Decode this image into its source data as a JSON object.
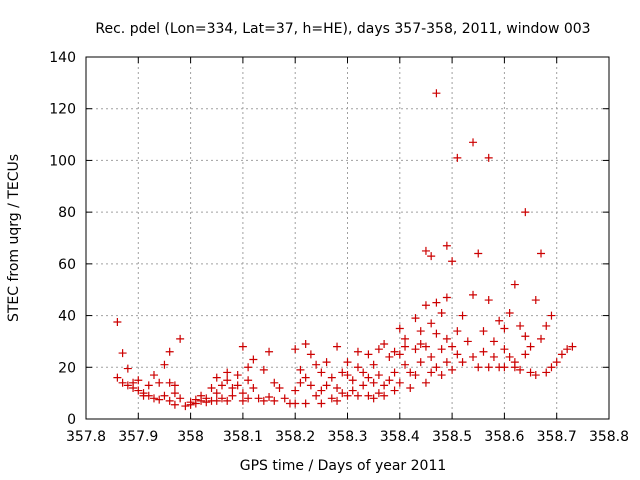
{
  "chart_data": {
    "type": "scatter",
    "title": "Rec. pdel (Lon=334, Lat=37, h=HE), days 357-358, 2011, window 003",
    "xlabel": "GPS time / Days of year 2011",
    "ylabel": "STEC from uqrg / TECUs",
    "xlim": [
      357.8,
      358.8
    ],
    "ylim": [
      0,
      140
    ],
    "xticks": [
      357.8,
      357.9,
      358,
      358.1,
      358.2,
      358.3,
      358.4,
      358.5,
      358.6,
      358.7,
      358.8
    ],
    "yticks": [
      0,
      20,
      40,
      60,
      80,
      100,
      120,
      140
    ],
    "grid": true,
    "marker": "+",
    "marker_color": "#cc0000",
    "points": [
      [
        357.86,
        37.5
      ],
      [
        357.86,
        16
      ],
      [
        357.87,
        25.5
      ],
      [
        357.87,
        14
      ],
      [
        357.88,
        19.5
      ],
      [
        357.88,
        13
      ],
      [
        357.89,
        14
      ],
      [
        357.89,
        12
      ],
      [
        357.9,
        15
      ],
      [
        357.9,
        11
      ],
      [
        357.91,
        10
      ],
      [
        357.91,
        9
      ],
      [
        357.92,
        13
      ],
      [
        357.92,
        9
      ],
      [
        357.93,
        17
      ],
      [
        357.93,
        8
      ],
      [
        357.94,
        14
      ],
      [
        357.94,
        7.5
      ],
      [
        357.95,
        21
      ],
      [
        357.95,
        9
      ],
      [
        357.96,
        26
      ],
      [
        357.96,
        14
      ],
      [
        357.96,
        7
      ],
      [
        357.97,
        13
      ],
      [
        357.97,
        10
      ],
      [
        357.97,
        5.5
      ],
      [
        357.98,
        31
      ],
      [
        357.98,
        8
      ],
      [
        357.99,
        5
      ],
      [
        358.0,
        6.5
      ],
      [
        358.0,
        5.5
      ],
      [
        358.01,
        6
      ],
      [
        358.01,
        7.5
      ],
      [
        358.02,
        7
      ],
      [
        358.02,
        9
      ],
      [
        358.03,
        6.5
      ],
      [
        358.03,
        8
      ],
      [
        358.04,
        12
      ],
      [
        358.04,
        7
      ],
      [
        358.05,
        16
      ],
      [
        358.05,
        10
      ],
      [
        358.05,
        7
      ],
      [
        358.06,
        13
      ],
      [
        358.06,
        8
      ],
      [
        358.07,
        18
      ],
      [
        358.07,
        15
      ],
      [
        358.07,
        7
      ],
      [
        358.08,
        12
      ],
      [
        358.08,
        9
      ],
      [
        358.09,
        17
      ],
      [
        358.09,
        13
      ],
      [
        358.1,
        28
      ],
      [
        358.1,
        10
      ],
      [
        358.1,
        7
      ],
      [
        358.11,
        20
      ],
      [
        358.11,
        15
      ],
      [
        358.11,
        8
      ],
      [
        358.12,
        23
      ],
      [
        358.12,
        12
      ],
      [
        358.13,
        8
      ],
      [
        358.14,
        19
      ],
      [
        358.14,
        7
      ],
      [
        358.15,
        26
      ],
      [
        358.15,
        8.5
      ],
      [
        358.16,
        14
      ],
      [
        358.16,
        7
      ],
      [
        358.17,
        12
      ],
      [
        358.18,
        8
      ],
      [
        358.19,
        6
      ],
      [
        358.2,
        27
      ],
      [
        358.2,
        11
      ],
      [
        358.2,
        6
      ],
      [
        358.21,
        19
      ],
      [
        358.21,
        14
      ],
      [
        358.22,
        29
      ],
      [
        358.22,
        16
      ],
      [
        358.22,
        6
      ],
      [
        358.23,
        25
      ],
      [
        358.23,
        13
      ],
      [
        358.24,
        21
      ],
      [
        358.24,
        9
      ],
      [
        358.25,
        18
      ],
      [
        358.25,
        11
      ],
      [
        358.25,
        6
      ],
      [
        358.26,
        22
      ],
      [
        358.26,
        13
      ],
      [
        358.27,
        16
      ],
      [
        358.27,
        8
      ],
      [
        358.28,
        28
      ],
      [
        358.28,
        12
      ],
      [
        358.28,
        7
      ],
      [
        358.29,
        18
      ],
      [
        358.29,
        10
      ],
      [
        358.3,
        22
      ],
      [
        358.3,
        17
      ],
      [
        358.3,
        9
      ],
      [
        358.31,
        15
      ],
      [
        358.31,
        11
      ],
      [
        358.32,
        26
      ],
      [
        358.32,
        20
      ],
      [
        358.32,
        9
      ],
      [
        358.33,
        18
      ],
      [
        358.33,
        13
      ],
      [
        358.34,
        25
      ],
      [
        358.34,
        16
      ],
      [
        358.34,
        9
      ],
      [
        358.35,
        21
      ],
      [
        358.35,
        14
      ],
      [
        358.35,
        8
      ],
      [
        358.36,
        27
      ],
      [
        358.36,
        17
      ],
      [
        358.36,
        10
      ],
      [
        358.37,
        29
      ],
      [
        358.37,
        13
      ],
      [
        358.37,
        9
      ],
      [
        358.38,
        24
      ],
      [
        358.38,
        15
      ],
      [
        358.39,
        26
      ],
      [
        358.39,
        18
      ],
      [
        358.39,
        11
      ],
      [
        358.4,
        35
      ],
      [
        358.4,
        25
      ],
      [
        358.4,
        14
      ],
      [
        358.41,
        31
      ],
      [
        358.41,
        28
      ],
      [
        358.41,
        21
      ],
      [
        358.42,
        18
      ],
      [
        358.42,
        12
      ],
      [
        358.43,
        39
      ],
      [
        358.43,
        27
      ],
      [
        358.43,
        17
      ],
      [
        358.44,
        34
      ],
      [
        358.44,
        29
      ],
      [
        358.44,
        22
      ],
      [
        358.45,
        65
      ],
      [
        358.45,
        44
      ],
      [
        358.45,
        28
      ],
      [
        358.45,
        14
      ],
      [
        358.46,
        63
      ],
      [
        358.46,
        37
      ],
      [
        358.46,
        24
      ],
      [
        358.46,
        18
      ],
      [
        358.47,
        126
      ],
      [
        358.47,
        45
      ],
      [
        358.47,
        33
      ],
      [
        358.47,
        20
      ],
      [
        358.48,
        41
      ],
      [
        358.48,
        27
      ],
      [
        358.48,
        17
      ],
      [
        358.49,
        67
      ],
      [
        358.49,
        47
      ],
      [
        358.49,
        31
      ],
      [
        358.49,
        22
      ],
      [
        358.5,
        61
      ],
      [
        358.5,
        28
      ],
      [
        358.5,
        19
      ],
      [
        358.51,
        101
      ],
      [
        358.51,
        34
      ],
      [
        358.51,
        25
      ],
      [
        358.52,
        40
      ],
      [
        358.52,
        22
      ],
      [
        358.53,
        30
      ],
      [
        358.54,
        107
      ],
      [
        358.54,
        48
      ],
      [
        358.54,
        24
      ],
      [
        358.55,
        64
      ],
      [
        358.55,
        20
      ],
      [
        358.56,
        34
      ],
      [
        358.56,
        26
      ],
      [
        358.57,
        101
      ],
      [
        358.57,
        46
      ],
      [
        358.57,
        20
      ],
      [
        358.58,
        30
      ],
      [
        358.58,
        24
      ],
      [
        358.59,
        38
      ],
      [
        358.59,
        20
      ],
      [
        358.6,
        35
      ],
      [
        358.6,
        27
      ],
      [
        358.6,
        20
      ],
      [
        358.61,
        41
      ],
      [
        358.61,
        24
      ],
      [
        358.62,
        52
      ],
      [
        358.62,
        22
      ],
      [
        358.62,
        20
      ],
      [
        358.63,
        36
      ],
      [
        358.63,
        19
      ],
      [
        358.64,
        80
      ],
      [
        358.64,
        32
      ],
      [
        358.64,
        25
      ],
      [
        358.65,
        28
      ],
      [
        358.65,
        18
      ],
      [
        358.66,
        46
      ],
      [
        358.66,
        17
      ],
      [
        358.67,
        64
      ],
      [
        358.67,
        31
      ],
      [
        358.68,
        36
      ],
      [
        358.68,
        18
      ],
      [
        358.69,
        40
      ],
      [
        358.69,
        20
      ],
      [
        358.7,
        22
      ],
      [
        358.71,
        25
      ],
      [
        358.72,
        27
      ],
      [
        358.73,
        28
      ]
    ]
  }
}
